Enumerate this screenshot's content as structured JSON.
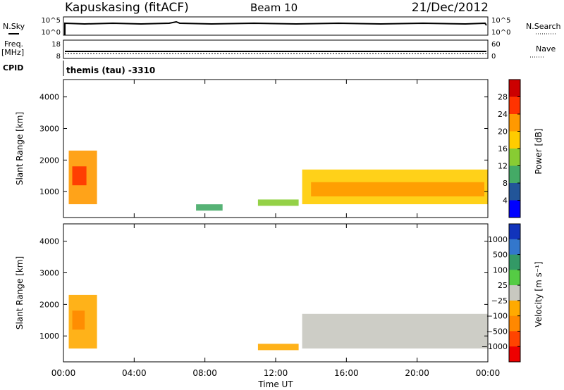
{
  "header": {
    "station": "Kapuskasing (fitACF)",
    "beam": "Beam 10",
    "date": "21/Dec/2012"
  },
  "sky_panel": {
    "left_label": "N.Sky",
    "right_label": "N.Search",
    "ticks_left": [
      "10^5",
      "10^0"
    ],
    "ticks_right": [
      "10^5",
      "10^0"
    ]
  },
  "freq_panel": {
    "left_label_1": "Freq.",
    "left_label_2": "[MHz]",
    "right_label": "Nave",
    "ticks_left": [
      "18",
      "8"
    ],
    "ticks_right": [
      "60",
      "0"
    ]
  },
  "cpid_panel": {
    "left_label": "CPID",
    "text": "themis (tau) -3310"
  },
  "power_panel": {
    "ylabel": "Slant Range [km]",
    "colorbar_label": "Power [dB]",
    "colorbar_ticks": [
      "28",
      "24",
      "20",
      "16",
      "12",
      "8",
      "4"
    ],
    "colorbar_colors": [
      "#cc0000",
      "#ff3300",
      "#ff9900",
      "#ffcc00",
      "#88cc33",
      "#44aa66",
      "#225599",
      "#0000ff"
    ]
  },
  "velocity_panel": {
    "ylabel": "Slant Range [km]",
    "colorbar_label": "Velocity [m s⁻¹]",
    "colorbar_ticks": [
      "1000",
      "500",
      "100",
      "25",
      "−25",
      "−100",
      "−500",
      "−1000"
    ],
    "colorbar_colors": [
      "#1133bb",
      "#3377cc",
      "#339966",
      "#55cc44",
      "#c8c8c0",
      "#ffaa00",
      "#ff8800",
      "#ff4400",
      "#ee0000"
    ]
  },
  "xaxis": {
    "label": "Time UT",
    "ticks": [
      "00:00",
      "04:00",
      "08:00",
      "12:00",
      "16:00",
      "20:00",
      "00:00"
    ]
  },
  "chart_data": [
    {
      "type": "heatmap",
      "title": "Power [dB]",
      "xlabel": "Time UT",
      "ylabel": "Slant Range [km]",
      "xlim": [
        0,
        24
      ],
      "ylim": [
        180,
        4550
      ],
      "yticks": [
        1000,
        2000,
        3000,
        4000
      ],
      "clim": [
        0,
        32
      ],
      "colorbar_ticks": [
        4,
        8,
        12,
        16,
        20,
        24,
        28
      ],
      "regions": [
        {
          "t0": 0.3,
          "t1": 1.9,
          "r0": 600,
          "r1": 2300,
          "value": 22
        },
        {
          "t0": 0.5,
          "t1": 1.3,
          "r0": 1200,
          "r1": 1800,
          "value": 27
        },
        {
          "t0": 7.5,
          "t1": 9.0,
          "r0": 400,
          "r1": 600,
          "value": 12
        },
        {
          "t0": 11.0,
          "t1": 13.3,
          "r0": 550,
          "r1": 750,
          "value": 14
        },
        {
          "t0": 13.5,
          "t1": 24.0,
          "r0": 600,
          "r1": 1700,
          "value": 18
        },
        {
          "t0": 14.0,
          "t1": 23.8,
          "r0": 850,
          "r1": 1300,
          "value": 24
        }
      ]
    },
    {
      "type": "heatmap",
      "title": "Velocity [m s⁻¹]",
      "xlabel": "Time UT",
      "ylabel": "Slant Range [km]",
      "xlim": [
        0,
        24
      ],
      "ylim": [
        180,
        4550
      ],
      "yticks": [
        1000,
        2000,
        3000,
        4000
      ],
      "colorbar_ticks": [
        1000,
        500,
        100,
        25,
        -25,
        -100,
        -500,
        -1000
      ],
      "regions": [
        {
          "t0": 0.3,
          "t1": 1.9,
          "r0": 600,
          "r1": 2300,
          "value": -100
        },
        {
          "t0": 0.5,
          "t1": 1.2,
          "r0": 1200,
          "r1": 1800,
          "value": -500
        },
        {
          "t0": 11.0,
          "t1": 13.3,
          "r0": 550,
          "r1": 750,
          "value": -100
        },
        {
          "t0": 13.5,
          "t1": 24.0,
          "r0": 600,
          "r1": 1700,
          "value": 0
        }
      ]
    }
  ]
}
